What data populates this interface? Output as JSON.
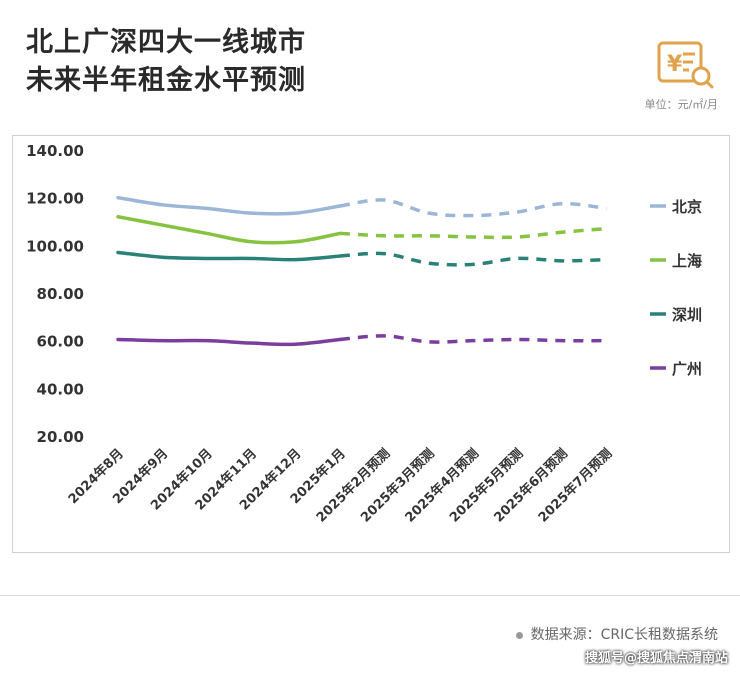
{
  "header": {
    "title_line1": "北上广深四大一线城市",
    "title_line2": "未来半年租金水平预测",
    "unit": "单位：元/㎡/月",
    "logo_icon": "yuan-document-search-icon"
  },
  "footer": {
    "source": "数据来源：CRIC长租数据系统",
    "watermark": "搜狐号@搜狐焦点渭南站"
  },
  "chart_data": {
    "type": "line",
    "title": "北上广深四大一线城市未来半年租金水平预测",
    "ylabel": "单位：元/㎡/月",
    "ylim": [
      20,
      140
    ],
    "yticks": [
      "140.00",
      "120.00",
      "100.00",
      "80.00",
      "60.00",
      "40.00",
      "20.00"
    ],
    "ytick_values": [
      140,
      120,
      100,
      80,
      60,
      40,
      20
    ],
    "categories": [
      "2024年8月",
      "2024年9月",
      "2024年10月",
      "2024年11月",
      "2024年12月",
      "2025年1月",
      "2025年2月预测",
      "2025年3月预测",
      "2025年4月预测",
      "2025年5月预测",
      "2025年6月预测",
      "2025年7月预测"
    ],
    "forecast_start_index": 5,
    "legend_position": "right",
    "series": [
      {
        "name": "北京",
        "color": "#9cb6d8",
        "values": [
          120.0,
          117.0,
          115.5,
          113.5,
          113.5,
          116.5,
          119.0,
          113.5,
          112.5,
          114.0,
          117.5,
          115.5
        ]
      },
      {
        "name": "上海",
        "color": "#86c341",
        "values": [
          112.0,
          108.5,
          105.0,
          101.5,
          101.5,
          105.0,
          104.0,
          104.0,
          103.5,
          103.5,
          105.5,
          107.0
        ]
      },
      {
        "name": "深圳",
        "color": "#2a8178",
        "values": [
          97.0,
          95.0,
          94.5,
          94.5,
          94.0,
          95.5,
          96.5,
          92.5,
          92.0,
          94.5,
          93.5,
          94.0
        ]
      },
      {
        "name": "广州",
        "color": "#7a3e9c",
        "values": [
          60.5,
          60.0,
          60.0,
          59.0,
          58.5,
          60.5,
          62.0,
          59.5,
          60.0,
          60.5,
          60.0,
          60.0
        ]
      }
    ]
  }
}
